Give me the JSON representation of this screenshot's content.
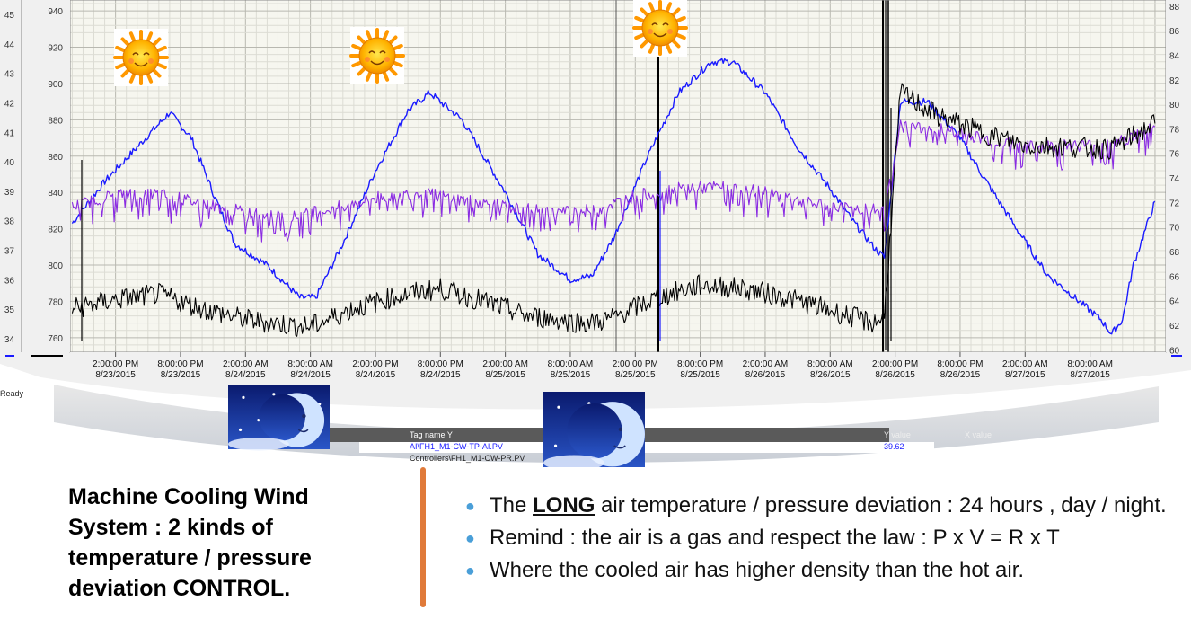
{
  "chart_data": {
    "type": "line",
    "x_tick_labels": [
      [
        "2:00:00 PM",
        "8/23/2015"
      ],
      [
        "8:00:00 PM",
        "8/23/2015"
      ],
      [
        "2:00:00 AM",
        "8/24/2015"
      ],
      [
        "8:00:00 AM",
        "8/24/2015"
      ],
      [
        "2:00:00 PM",
        "8/24/2015"
      ],
      [
        "8:00:00 PM",
        "8/24/2015"
      ],
      [
        "2:00:00 AM",
        "8/25/2015"
      ],
      [
        "8:00:00 AM",
        "8/25/2015"
      ],
      [
        "2:00:00 PM",
        "8/25/2015"
      ],
      [
        "8:00:00 PM",
        "8/25/2015"
      ],
      [
        "2:00:00 AM",
        "8/26/2015"
      ],
      [
        "8:00:00 AM",
        "8/26/2015"
      ],
      [
        "2:00:00 PM",
        "8/26/2015"
      ],
      [
        "8:00:00 PM",
        "8/26/2015"
      ],
      [
        "2:00:00 AM",
        "8/27/2015"
      ],
      [
        "8:00:00 AM",
        "8/27/2015"
      ]
    ],
    "y_axis_outer_ticks": [
      "34",
      "35",
      "36",
      "37",
      "38",
      "39",
      "40",
      "41",
      "42",
      "43",
      "44",
      "45"
    ],
    "y_axis_left_ticks": [
      "760",
      "780",
      "800",
      "820",
      "840",
      "860",
      "880",
      "900",
      "920",
      "940"
    ],
    "y_axis_right_ticks": [
      "60",
      "62",
      "64",
      "66",
      "68",
      "70",
      "72",
      "74",
      "76",
      "78",
      "80",
      "82",
      "84",
      "86",
      "88"
    ],
    "y_axis_left_range": [
      752,
      946
    ],
    "y_axis_right_range": [
      59.8,
      88.5
    ],
    "x_hours_range": [
      -2.2,
      99
    ],
    "grid": true,
    "series": [
      {
        "color": "#1a1aff",
        "axis": "left",
        "points": [
          [
            -2,
            823
          ],
          [
            1,
            846
          ],
          [
            4,
            865
          ],
          [
            7,
            884
          ],
          [
            9,
            870
          ],
          [
            11,
            840
          ],
          [
            13,
            812
          ],
          [
            16,
            800
          ],
          [
            19,
            782
          ],
          [
            20.5,
            782
          ],
          [
            23,
            812
          ],
          [
            26,
            852
          ],
          [
            29,
            885
          ],
          [
            31,
            895
          ],
          [
            34,
            880
          ],
          [
            38,
            840
          ],
          [
            41,
            806
          ],
          [
            44,
            792
          ],
          [
            46,
            794
          ],
          [
            48,
            815
          ],
          [
            51,
            858
          ],
          [
            54,
            895
          ],
          [
            57,
            912
          ],
          [
            59,
            912
          ],
          [
            62,
            895
          ],
          [
            65,
            865
          ],
          [
            68,
            842
          ],
          [
            70,
            825
          ],
          [
            72,
            810
          ],
          [
            73,
            804
          ],
          [
            74.5,
            890
          ],
          [
            77,
            890
          ],
          [
            80,
            870
          ],
          [
            82,
            850
          ],
          [
            85,
            822
          ],
          [
            88,
            795
          ],
          [
            91,
            780
          ],
          [
            93,
            770
          ],
          [
            94,
            762
          ],
          [
            95,
            770
          ],
          [
            96,
            800
          ],
          [
            98,
            835
          ]
        ]
      },
      {
        "color": "#8a2be2",
        "axis": "left",
        "points": [
          [
            -2,
            832
          ],
          [
            2,
            839
          ],
          [
            6,
            839
          ],
          [
            10,
            834
          ],
          [
            14,
            829
          ],
          [
            18,
            826
          ],
          [
            22,
            831
          ],
          [
            26,
            837
          ],
          [
            30,
            840
          ],
          [
            34,
            836
          ],
          [
            38,
            832
          ],
          [
            42,
            829
          ],
          [
            46,
            830
          ],
          [
            50,
            838
          ],
          [
            54,
            842
          ],
          [
            58,
            843
          ],
          [
            62,
            840
          ],
          [
            66,
            834
          ],
          [
            70,
            831
          ],
          [
            73,
            830
          ],
          [
            74.5,
            877
          ],
          [
            78,
            875
          ],
          [
            82,
            870
          ],
          [
            86,
            865
          ],
          [
            90,
            866
          ],
          [
            94,
            866
          ],
          [
            98,
            876
          ]
        ]
      },
      {
        "color": "#000000",
        "axis": "left",
        "points": [
          [
            -2,
            776
          ],
          [
            2,
            781
          ],
          [
            6,
            784
          ],
          [
            10,
            776
          ],
          [
            14,
            770
          ],
          [
            18,
            767
          ],
          [
            20,
            766
          ],
          [
            24,
            776
          ],
          [
            28,
            783
          ],
          [
            32,
            787
          ],
          [
            36,
            780
          ],
          [
            40,
            772
          ],
          [
            44,
            769
          ],
          [
            46,
            768
          ],
          [
            48,
            771
          ],
          [
            52,
            782
          ],
          [
            56,
            789
          ],
          [
            60,
            787
          ],
          [
            64,
            782
          ],
          [
            68,
            775
          ],
          [
            72,
            768
          ],
          [
            73,
            772
          ],
          [
            74.5,
            895
          ],
          [
            78,
            882
          ],
          [
            82,
            873
          ],
          [
            86,
            866
          ],
          [
            90,
            865
          ],
          [
            94,
            864
          ],
          [
            98,
            878
          ]
        ]
      }
    ]
  },
  "slide": {
    "title": "Machine Cooling Wind System : 2 kinds of temperature / pressure deviation CONTROL.",
    "bullets": [
      {
        "prefix": "The ",
        "emphasis": "LONG",
        "suffix": " air temperature / pressure deviation : 24 hours , day / night."
      },
      {
        "prefix": "Remind : the air is a gas and respect the law : P x V = R x T",
        "emphasis": "",
        "suffix": ""
      },
      {
        "prefix": "Where the cooled air has higher density than the hot air.",
        "emphasis": "",
        "suffix": ""
      }
    ]
  },
  "grid_table": {
    "header_tag": "Tag name Y",
    "header_yvalue": "Y value",
    "header_xvalue": "X value",
    "row1_tag": "AI\\FH1_M1-CW-TP-AI.PV",
    "row1_value": "39.62",
    "row2_tag": "Controllers\\FH1_M1-CW-PR.PV",
    "status": "Ready"
  },
  "icons": {
    "sun": "sun-face-icon",
    "moon": "crescent-moon-face-icon"
  },
  "colors": {
    "accent_orange": "#e07a3a",
    "bullet_blue": "#4a9fd8"
  }
}
